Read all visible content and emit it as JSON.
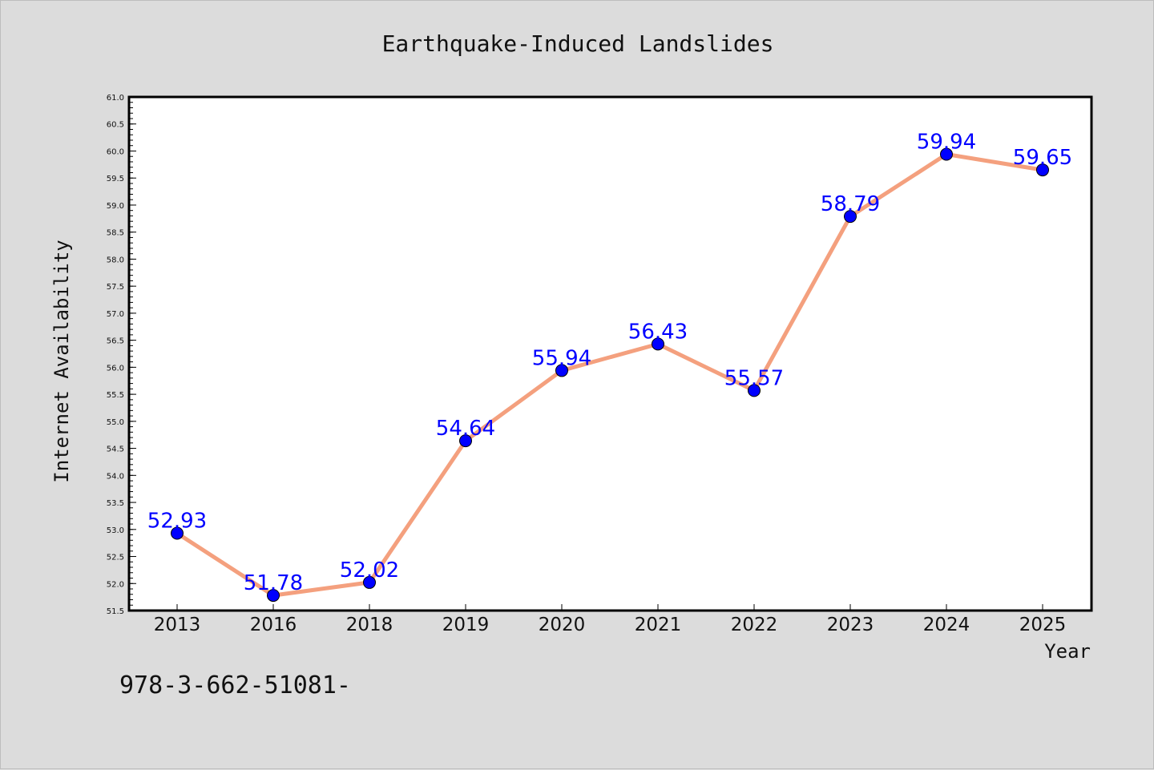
{
  "chart_data": {
    "type": "line",
    "title": "Earthquake-Induced Landslides",
    "xlabel": "Year",
    "ylabel": "Internet Availability",
    "categories": [
      "2013",
      "2016",
      "2018",
      "2019",
      "2020",
      "2021",
      "2022",
      "2023",
      "2024",
      "2025"
    ],
    "values": [
      52.93,
      51.78,
      52.02,
      54.64,
      55.94,
      56.43,
      55.57,
      58.79,
      59.94,
      59.65
    ],
    "data_labels": [
      "52.93",
      "51.78",
      "52.02",
      "54.64",
      "55.94",
      "56.43",
      "55.57",
      "58.79",
      "59.94",
      "59.65"
    ],
    "ylim": [
      51.5,
      61.0
    ],
    "yticks": [
      "51.5",
      "52.0",
      "52.5",
      "53.0",
      "53.5",
      "54.0",
      "54.5",
      "55.0",
      "55.5",
      "56.0",
      "56.5",
      "57.0",
      "57.5",
      "58.0",
      "58.5",
      "59.0",
      "59.5",
      "60.0",
      "60.5",
      "61.0"
    ],
    "grid": false,
    "legend": "none",
    "colors": {
      "line": "#f4a07e",
      "marker": "#0000ff",
      "label": "#0000ff",
      "background": "#dcdcdc",
      "plot_area": "#ffffff"
    }
  },
  "footer_text": "978-3-662-51081-"
}
